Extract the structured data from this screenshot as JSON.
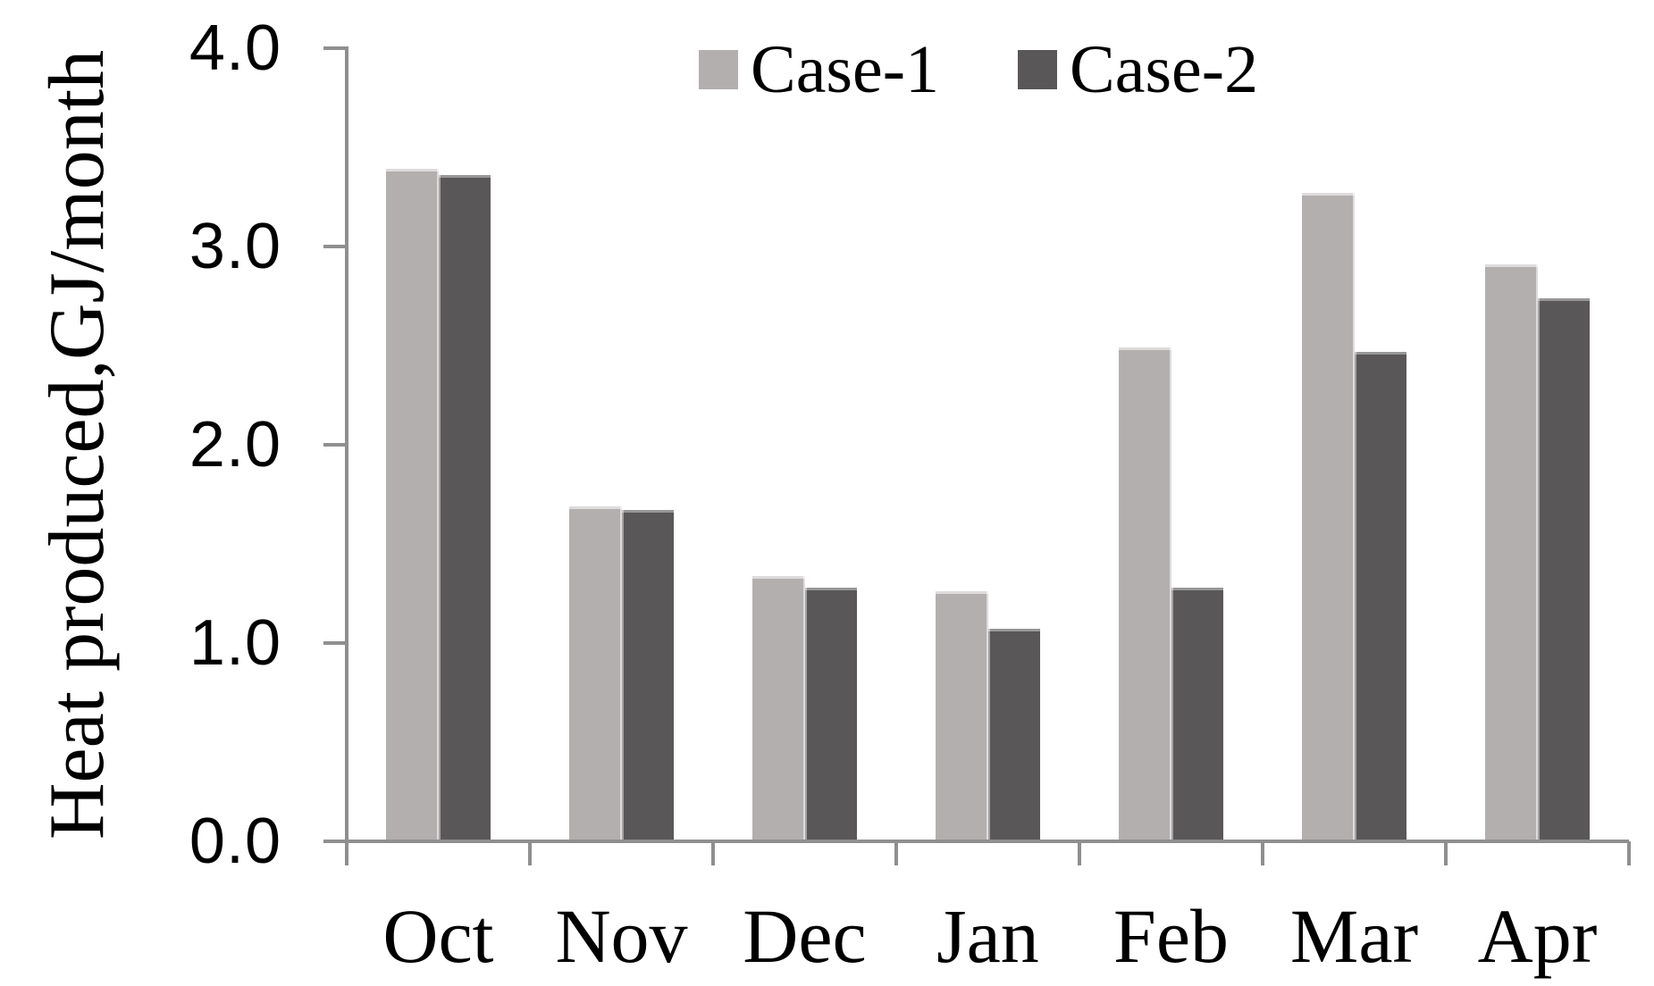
{
  "chart_data": {
    "type": "bar",
    "title": "",
    "categories": [
      "Oct",
      "Nov",
      "Dec",
      "Jan",
      "Feb",
      "Mar",
      "Apr"
    ],
    "series": [
      {
        "name": "Case-1",
        "color": "#b3afaf",
        "values": [
          3.39,
          1.69,
          1.34,
          1.26,
          2.49,
          3.27,
          2.91
        ]
      },
      {
        "name": "Case-2",
        "color": "#595757",
        "values": [
          3.36,
          1.67,
          1.28,
          1.07,
          1.28,
          2.47,
          2.74
        ]
      }
    ],
    "ylabel_line1": "Heat produced,",
    "ylabel_line2": "GJ/month",
    "xlabel": "",
    "yticks": [
      "0.0",
      "1.0",
      "2.0",
      "3.0",
      "4.0"
    ],
    "ytick_values": [
      0.0,
      1.0,
      2.0,
      3.0,
      4.0
    ],
    "ylim": [
      0.0,
      4.0
    ],
    "grid": false,
    "legend_position": "top-center"
  },
  "colors": {
    "axis": "#8f8f8f",
    "text": "#000000",
    "background": "#ffffff"
  }
}
